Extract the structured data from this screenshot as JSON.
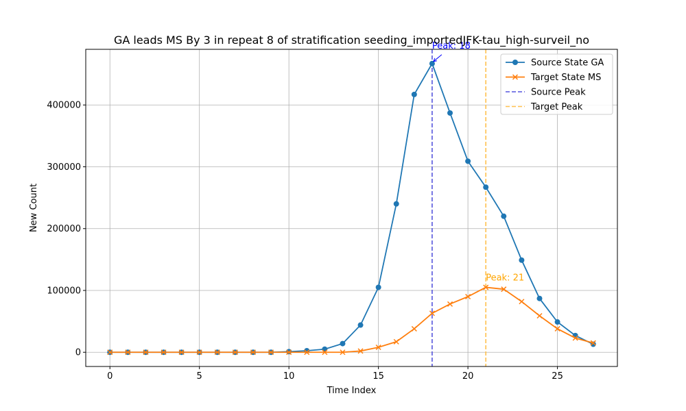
{
  "chart_data": {
    "type": "line",
    "title": "GA leads MS By 3 in repeat 8 of stratification seeding_importedJFK-tau_high-surveil_no",
    "xlabel": "Time Index",
    "ylabel": "New Count",
    "xlim": [
      -1.35,
      28.35
    ],
    "ylim": [
      -23000,
      490000
    ],
    "xticks": [
      0,
      5,
      10,
      15,
      20,
      25
    ],
    "yticks": [
      0,
      100000,
      200000,
      300000,
      400000
    ],
    "grid": true,
    "legend_position": "top-right",
    "x": [
      0,
      1,
      2,
      3,
      4,
      5,
      6,
      7,
      8,
      9,
      10,
      11,
      12,
      13,
      14,
      15,
      16,
      17,
      18,
      19,
      20,
      21,
      22,
      23,
      24,
      25,
      26,
      27
    ],
    "series": [
      {
        "name": "Source State GA",
        "color": "#1f77b4",
        "marker": "circle",
        "values": [
          0,
          0,
          0,
          0,
          0,
          0,
          0,
          0,
          0,
          0,
          1000,
          2500,
          5000,
          14000,
          44000,
          105000,
          240000,
          417000,
          467000,
          387000,
          309000,
          267000,
          220000,
          149000,
          87000,
          49000,
          27000,
          13000
        ]
      },
      {
        "name": "Target State MS",
        "color": "#ff7f0e",
        "marker": "x",
        "values": [
          0,
          0,
          0,
          0,
          0,
          0,
          0,
          0,
          0,
          0,
          0,
          0,
          0,
          0,
          2000,
          8000,
          17000,
          38000,
          63000,
          78000,
          90000,
          105000,
          102000,
          82000,
          59000,
          38000,
          23000,
          15000
        ]
      }
    ],
    "peak_lines": [
      {
        "name": "Source Peak",
        "x": 18,
        "color": "#5555dd"
      },
      {
        "name": "Target Peak",
        "x": 21,
        "color": "#ffc04d"
      }
    ],
    "annotations": [
      {
        "text": "Peak: 18",
        "x": 18,
        "y": 467000,
        "color": "#0000ff"
      },
      {
        "text": "Peak: 21",
        "x": 21,
        "y": 105000,
        "color": "#ffa500"
      }
    ]
  }
}
